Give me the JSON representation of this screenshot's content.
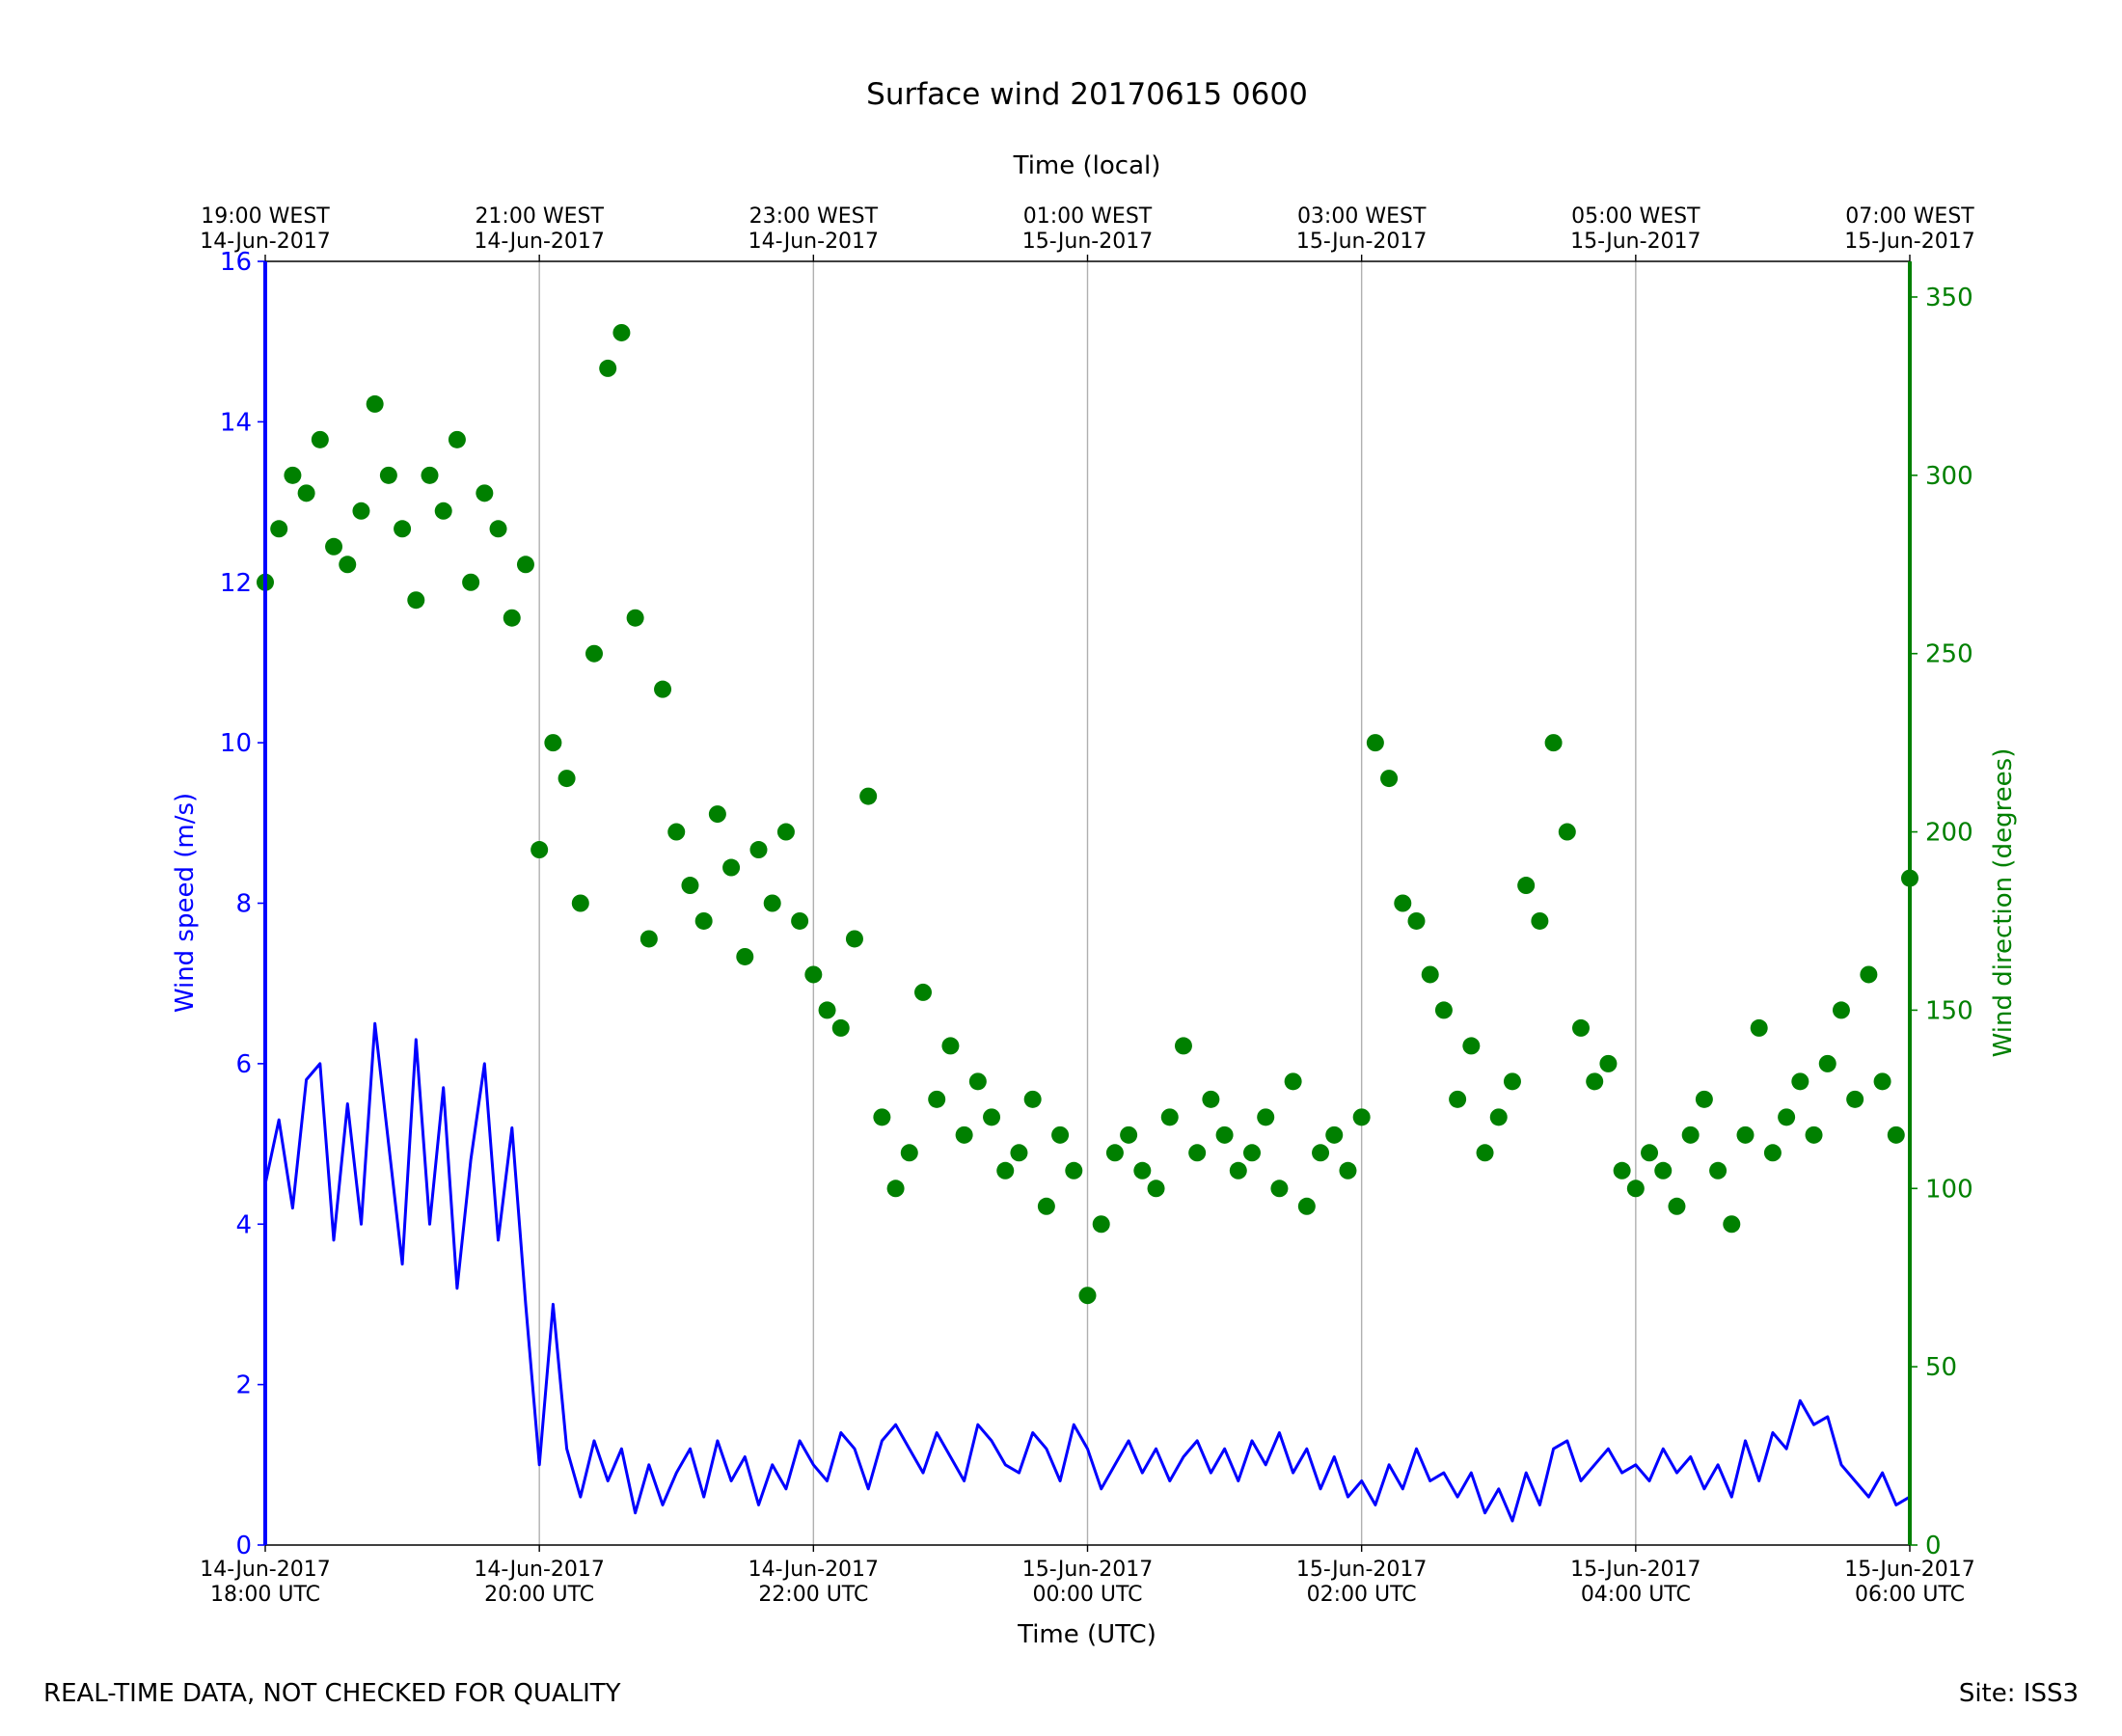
{
  "chart_data": {
    "type": "line",
    "title": "Surface wind 20170615 0600",
    "xlabel": "Time (UTC)",
    "x2label": "Time (local)",
    "ylabel": "Wind speed (m/s)",
    "y2label": "Wind direction (degrees)",
    "footer_left": "REAL-TIME DATA, NOT CHECKED FOR QUALITY",
    "footer_right": "Site: ISS3",
    "grid": "x",
    "xlim": [
      "2017-06-14T18:00",
      "2017-06-15T06:00"
    ],
    "xticks": [
      {
        "value": "2017-06-14T18:00",
        "label": [
          "14-Jun-2017",
          "18:00 UTC"
        ]
      },
      {
        "value": "2017-06-14T20:00",
        "label": [
          "14-Jun-2017",
          "20:00 UTC"
        ]
      },
      {
        "value": "2017-06-14T22:00",
        "label": [
          "14-Jun-2017",
          "22:00 UTC"
        ]
      },
      {
        "value": "2017-06-15T00:00",
        "label": [
          "15-Jun-2017",
          "00:00 UTC"
        ]
      },
      {
        "value": "2017-06-15T02:00",
        "label": [
          "15-Jun-2017",
          "02:00 UTC"
        ]
      },
      {
        "value": "2017-06-15T04:00",
        "label": [
          "15-Jun-2017",
          "04:00 UTC"
        ]
      },
      {
        "value": "2017-06-15T06:00",
        "label": [
          "15-Jun-2017",
          "06:00 UTC"
        ]
      }
    ],
    "x2ticks": [
      {
        "value": "2017-06-14T18:00",
        "label": [
          "19:00 WEST",
          "14-Jun-2017"
        ]
      },
      {
        "value": "2017-06-14T20:00",
        "label": [
          "21:00 WEST",
          "14-Jun-2017"
        ]
      },
      {
        "value": "2017-06-14T22:00",
        "label": [
          "23:00 WEST",
          "14-Jun-2017"
        ]
      },
      {
        "value": "2017-06-15T00:00",
        "label": [
          "01:00 WEST",
          "15-Jun-2017"
        ]
      },
      {
        "value": "2017-06-15T02:00",
        "label": [
          "03:00 WEST",
          "15-Jun-2017"
        ]
      },
      {
        "value": "2017-06-15T04:00",
        "label": [
          "05:00 WEST",
          "15-Jun-2017"
        ]
      },
      {
        "value": "2017-06-15T06:00",
        "label": [
          "07:00 WEST",
          "15-Jun-2017"
        ]
      }
    ],
    "ylim": [
      0,
      16
    ],
    "yticks": [
      0,
      2,
      4,
      6,
      8,
      10,
      12,
      14,
      16
    ],
    "y2lim": [
      0,
      360
    ],
    "y2ticks": [
      0,
      50,
      100,
      150,
      200,
      250,
      300,
      350
    ],
    "x": [
      "2017-06-14T18:00",
      "2017-06-14T18:06",
      "2017-06-14T18:12",
      "2017-06-14T18:18",
      "2017-06-14T18:24",
      "2017-06-14T18:30",
      "2017-06-14T18:36",
      "2017-06-14T18:42",
      "2017-06-14T18:48",
      "2017-06-14T18:54",
      "2017-06-14T19:00",
      "2017-06-14T19:06",
      "2017-06-14T19:12",
      "2017-06-14T19:18",
      "2017-06-14T19:24",
      "2017-06-14T19:30",
      "2017-06-14T19:36",
      "2017-06-14T19:42",
      "2017-06-14T19:48",
      "2017-06-14T19:54",
      "2017-06-14T20:00",
      "2017-06-14T20:06",
      "2017-06-14T20:12",
      "2017-06-14T20:18",
      "2017-06-14T20:24",
      "2017-06-14T20:30",
      "2017-06-14T20:36",
      "2017-06-14T20:42",
      "2017-06-14T20:48",
      "2017-06-14T20:54",
      "2017-06-14T21:00",
      "2017-06-14T21:06",
      "2017-06-14T21:12",
      "2017-06-14T21:18",
      "2017-06-14T21:24",
      "2017-06-14T21:30",
      "2017-06-14T21:36",
      "2017-06-14T21:42",
      "2017-06-14T21:48",
      "2017-06-14T21:54",
      "2017-06-14T22:00",
      "2017-06-14T22:06",
      "2017-06-14T22:12",
      "2017-06-14T22:18",
      "2017-06-14T22:24",
      "2017-06-14T22:30",
      "2017-06-14T22:36",
      "2017-06-14T22:42",
      "2017-06-14T22:48",
      "2017-06-14T22:54",
      "2017-06-14T23:00",
      "2017-06-14T23:06",
      "2017-06-14T23:12",
      "2017-06-14T23:18",
      "2017-06-14T23:24",
      "2017-06-14T23:30",
      "2017-06-14T23:36",
      "2017-06-14T23:42",
      "2017-06-14T23:48",
      "2017-06-14T23:54",
      "2017-06-15T00:00",
      "2017-06-15T00:06",
      "2017-06-15T00:12",
      "2017-06-15T00:18",
      "2017-06-15T00:24",
      "2017-06-15T00:30",
      "2017-06-15T00:36",
      "2017-06-15T00:42",
      "2017-06-15T00:48",
      "2017-06-15T00:54",
      "2017-06-15T01:00",
      "2017-06-15T01:06",
      "2017-06-15T01:12",
      "2017-06-15T01:18",
      "2017-06-15T01:24",
      "2017-06-15T01:30",
      "2017-06-15T01:36",
      "2017-06-15T01:42",
      "2017-06-15T01:48",
      "2017-06-15T01:54",
      "2017-06-15T02:00",
      "2017-06-15T02:06",
      "2017-06-15T02:12",
      "2017-06-15T02:18",
      "2017-06-15T02:24",
      "2017-06-15T02:30",
      "2017-06-15T02:36",
      "2017-06-15T02:42",
      "2017-06-15T02:48",
      "2017-06-15T02:54",
      "2017-06-15T03:00",
      "2017-06-15T03:06",
      "2017-06-15T03:12",
      "2017-06-15T03:18",
      "2017-06-15T03:24",
      "2017-06-15T03:30",
      "2017-06-15T03:36",
      "2017-06-15T03:42",
      "2017-06-15T03:48",
      "2017-06-15T03:54",
      "2017-06-15T04:00",
      "2017-06-15T04:06",
      "2017-06-15T04:12",
      "2017-06-15T04:18",
      "2017-06-15T04:24",
      "2017-06-15T04:30",
      "2017-06-15T04:36",
      "2017-06-15T04:42",
      "2017-06-15T04:48",
      "2017-06-15T04:54",
      "2017-06-15T05:00",
      "2017-06-15T05:06",
      "2017-06-15T05:12",
      "2017-06-15T05:18",
      "2017-06-15T05:24",
      "2017-06-15T05:30",
      "2017-06-15T05:36",
      "2017-06-15T05:42",
      "2017-06-15T05:48",
      "2017-06-15T05:54",
      "2017-06-15T06:00"
    ],
    "series": [
      {
        "type": "line",
        "color": "#0000ff",
        "axis": "y",
        "values": [
          4.5,
          5.3,
          4.2,
          5.8,
          6.0,
          3.8,
          5.5,
          4.0,
          6.5,
          5.0,
          3.5,
          6.3,
          4.0,
          5.7,
          3.2,
          4.8,
          6.0,
          3.8,
          5.2,
          3.0,
          1.0,
          3.0,
          1.2,
          0.6,
          1.3,
          0.8,
          1.2,
          0.4,
          1.0,
          0.5,
          0.9,
          1.2,
          0.6,
          1.3,
          0.8,
          1.1,
          0.5,
          1.0,
          0.7,
          1.3,
          1.0,
          0.8,
          1.4,
          1.2,
          0.7,
          1.3,
          1.5,
          1.2,
          0.9,
          1.4,
          1.1,
          0.8,
          1.5,
          1.3,
          1.0,
          0.9,
          1.4,
          1.2,
          0.8,
          1.5,
          1.2,
          0.7,
          1.0,
          1.3,
          0.9,
          1.2,
          0.8,
          1.1,
          1.3,
          0.9,
          1.2,
          0.8,
          1.3,
          1.0,
          1.4,
          0.9,
          1.2,
          0.7,
          1.1,
          0.6,
          0.8,
          0.5,
          1.0,
          0.7,
          1.2,
          0.8,
          0.9,
          0.6,
          0.9,
          0.4,
          0.7,
          0.3,
          0.9,
          0.5,
          1.2,
          1.3,
          0.8,
          1.0,
          1.2,
          0.9,
          1.0,
          0.8,
          1.2,
          0.9,
          1.1,
          0.7,
          1.0,
          0.6,
          1.3,
          0.8,
          1.4,
          1.2,
          1.8,
          1.5,
          1.6,
          1.0,
          0.8,
          0.6,
          0.9,
          0.5,
          0.6
        ]
      },
      {
        "type": "scatter",
        "color": "#008000",
        "axis": "y2",
        "values": [
          270,
          285,
          300,
          295,
          310,
          280,
          275,
          290,
          320,
          300,
          285,
          265,
          300,
          290,
          310,
          270,
          295,
          285,
          260,
          275,
          195,
          225,
          215,
          180,
          250,
          330,
          340,
          260,
          170,
          240,
          200,
          185,
          175,
          205,
          190,
          165,
          195,
          180,
          200,
          175,
          160,
          150,
          145,
          170,
          210,
          120,
          100,
          110,
          155,
          125,
          140,
          115,
          130,
          120,
          105,
          110,
          125,
          95,
          115,
          105,
          70,
          90,
          110,
          115,
          105,
          100,
          120,
          140,
          110,
          125,
          115,
          105,
          110,
          120,
          100,
          130,
          95,
          110,
          115,
          105,
          120,
          225,
          215,
          180,
          175,
          160,
          150,
          125,
          140,
          110,
          120,
          130,
          185,
          175,
          225,
          200,
          145,
          130,
          135,
          105,
          100,
          110,
          105,
          95,
          115,
          125,
          105,
          90,
          115,
          145,
          110,
          120,
          130,
          115,
          135,
          150,
          125,
          160,
          130,
          115,
          187
        ]
      }
    ]
  }
}
